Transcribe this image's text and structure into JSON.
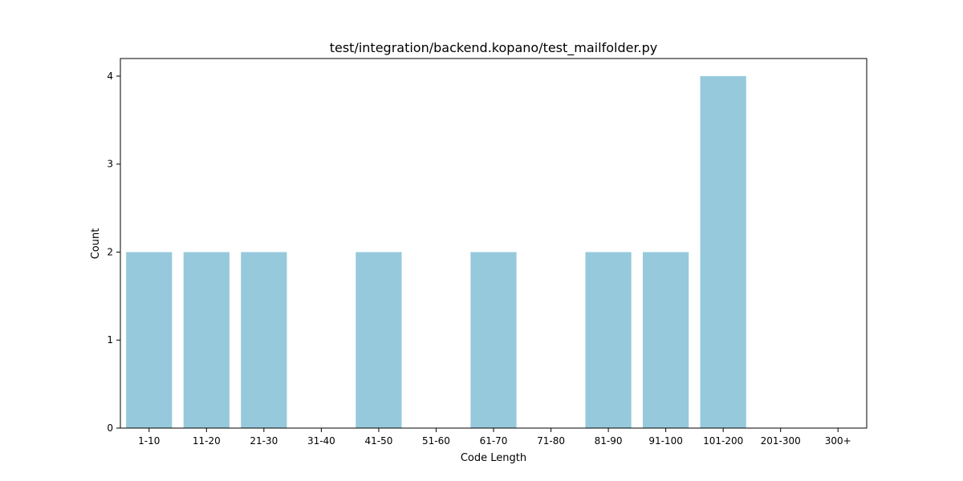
{
  "chart_data": {
    "type": "bar",
    "title": "test/integration/backend.kopano/test_mailfolder.py",
    "xlabel": "Code Length",
    "ylabel": "Count",
    "categories": [
      "1-10",
      "11-20",
      "21-30",
      "31-40",
      "41-50",
      "51-60",
      "61-70",
      "71-80",
      "81-90",
      "91-100",
      "101-200",
      "201-300",
      "300+"
    ],
    "values": [
      2,
      2,
      2,
      0,
      2,
      0,
      2,
      0,
      2,
      2,
      4,
      0,
      0
    ],
    "ylim": [
      0,
      4.2
    ],
    "yticks": [
      "0",
      "1",
      "2",
      "3",
      "4"
    ],
    "bar_color": "#96c9dc",
    "grid": false,
    "legend": "none"
  }
}
